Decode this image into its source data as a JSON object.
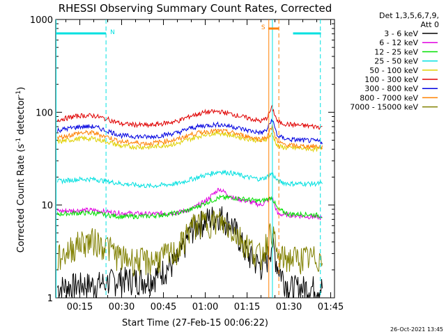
{
  "chart_data": {
    "type": "line",
    "title": "RHESSI Observing Summary Count Rates, Corrected",
    "ylabel_prefix": "Corrected Count Rate (s",
    "ylabel_sup": "-1",
    "ylabel_mid": " detector",
    "ylabel_sup2": "-1",
    "ylabel_suffix": ")",
    "xlabel": "Start Time (27-Feb-15 00:06:22)",
    "timestamp": "26-Oct-2021 13:45",
    "y_scale": "log",
    "ylim": [
      1,
      1000
    ],
    "y_ticks": [
      {
        "value": 1,
        "label": "1"
      },
      {
        "value": 10,
        "label": "10"
      },
      {
        "value": 100,
        "label": "100"
      },
      {
        "value": 1000,
        "label": "1000"
      }
    ],
    "xlim": [
      "00:06:22",
      "01:46:22"
    ],
    "x_ticks": [
      {
        "minute": 15,
        "label": "00:15"
      },
      {
        "minute": 30,
        "label": "00:30"
      },
      {
        "minute": 45,
        "label": "00:45"
      },
      {
        "minute": 60,
        "label": "01:00"
      },
      {
        "minute": 75,
        "label": "01:15"
      },
      {
        "minute": 90,
        "label": "01:30"
      },
      {
        "minute": 105,
        "label": "01:45"
      }
    ],
    "legend": {
      "placement": "right",
      "header": [
        "Det 1,3,5,6,7,9,",
        "Att 0"
      ],
      "entries": [
        {
          "label": "3 - 6 keV",
          "color": "#000000"
        },
        {
          "label": "6 - 12 keV",
          "color": "#e000e0"
        },
        {
          "label": "12 - 25 keV",
          "color": "#00e000"
        },
        {
          "label": "25 - 50 keV",
          "color": "#00e0e0"
        },
        {
          "label": "50 - 100 keV",
          "color": "#e0d000"
        },
        {
          "label": "100 - 300 keV",
          "color": "#e00000"
        },
        {
          "label": "300 - 800 keV",
          "color": "#0000e0"
        },
        {
          "label": "800 - 7000 keV",
          "color": "#ff8000"
        },
        {
          "label": "7000 - 15000 keV",
          "color": "#808000"
        }
      ]
    },
    "flag_bars": [
      {
        "label": "N",
        "color": "#00e0e0",
        "start_minute": 6.4,
        "end_minute": 24.4
      },
      {
        "label": "",
        "color": "#00e0e0",
        "start_minute": 91.5,
        "end_minute": 101.5
      },
      {
        "label": "S",
        "color": "#ff8000",
        "start_minute": 82.6,
        "end_minute": 86.4
      }
    ],
    "vertical_markers": [
      {
        "minute": 6.5,
        "color": "#00e0e0",
        "style": "solid"
      },
      {
        "minute": 24.4,
        "color": "#00e0e0",
        "style": "dashed"
      },
      {
        "minute": 82.8,
        "color": "#ff8000",
        "style": "solid"
      },
      {
        "minute": 84.1,
        "color": "#00e0e0",
        "style": "solid"
      },
      {
        "minute": 86.4,
        "color": "#ff8000",
        "style": "dashed"
      },
      {
        "minute": 101.3,
        "color": "#00e0e0",
        "style": "dashed"
      }
    ],
    "x_minutes": [
      7,
      15,
      20,
      25,
      30,
      40,
      50,
      55,
      60,
      65,
      70,
      75,
      80,
      82,
      84,
      86,
      90,
      95,
      100,
      102
    ],
    "series": [
      {
        "name": "3 - 6 keV",
        "color": "#000000",
        "values": [
          1.3,
          1.4,
          1.4,
          1.5,
          1.6,
          1.6,
          2.5,
          5.5,
          7,
          8,
          6,
          3,
          2.2,
          2.5,
          4,
          2.2,
          1.3,
          1.3,
          1.3,
          1.3
        ]
      },
      {
        "name": "6 - 12 keV",
        "color": "#e000e0",
        "values": [
          8.6,
          8.8,
          8.8,
          8.4,
          8.2,
          8.0,
          8.3,
          9,
          11,
          15,
          12,
          11,
          10,
          11,
          12,
          8,
          7.8,
          7.6,
          7.4,
          7.2
        ]
      },
      {
        "name": "12 - 25 keV",
        "color": "#00e000",
        "values": [
          8.0,
          8.2,
          8.2,
          7.8,
          7.5,
          7.6,
          8.2,
          9,
          10.5,
          12,
          12,
          11.5,
          11,
          11.5,
          12,
          9,
          8.0,
          8.0,
          7.8,
          7.6
        ]
      },
      {
        "name": "25 - 50 keV",
        "color": "#00e0e0",
        "values": [
          18,
          19,
          19,
          18,
          17,
          16,
          17,
          19,
          21,
          23,
          22,
          20,
          19,
          20,
          22,
          18,
          17,
          17,
          17,
          17
        ]
      },
      {
        "name": "50 - 100 keV",
        "color": "#e0d000",
        "values": [
          48,
          52,
          52,
          48,
          43,
          42,
          46,
          52,
          58,
          60,
          56,
          52,
          49,
          52,
          58,
          43,
          41,
          41,
          40,
          40
        ]
      },
      {
        "name": "100 - 300 keV",
        "color": "#e00000",
        "values": [
          83,
          92,
          92,
          84,
          75,
          72,
          80,
          92,
          100,
          102,
          95,
          87,
          80,
          86,
          113,
          78,
          74,
          72,
          70,
          69
        ]
      },
      {
        "name": "300 - 800 keV",
        "color": "#0000e0",
        "values": [
          64,
          70,
          70,
          63,
          56,
          54,
          60,
          68,
          72,
          74,
          70,
          64,
          60,
          64,
          84,
          55,
          51,
          50,
          49,
          48
        ]
      },
      {
        "name": "800 - 7000 keV",
        "color": "#ff8000",
        "values": [
          53,
          60,
          60,
          54,
          48,
          46,
          51,
          58,
          62,
          63,
          60,
          55,
          51,
          54,
          70,
          47,
          44,
          43,
          43,
          42
        ]
      },
      {
        "name": "7000 - 15000 keV",
        "color": "#808000",
        "values": [
          2.7,
          4.0,
          4.2,
          3.6,
          2.7,
          2.5,
          3.2,
          6.0,
          6.6,
          6.8,
          5.4,
          3.8,
          2.8,
          4.0,
          5.5,
          2.7,
          2.7,
          2.7,
          2.7,
          2.7
        ]
      }
    ]
  }
}
